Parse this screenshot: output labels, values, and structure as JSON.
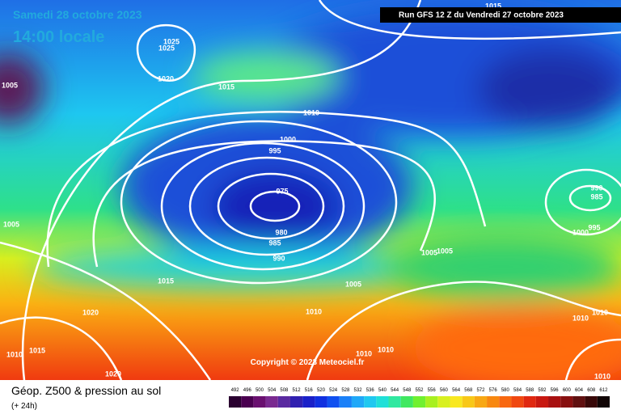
{
  "header": {
    "date": "Samedi 28 octobre 2023",
    "time": "14:00 locale",
    "run": "Run GFS 12 Z du Vendredi 27 octobre 2023"
  },
  "copyright": "Copyright © 2023 Meteociel.fr",
  "footer": {
    "title": "Géop. Z500 & pression au sol",
    "lead": "(+ 24h)"
  },
  "legend": {
    "ticks": [
      492,
      496,
      500,
      504,
      508,
      512,
      516,
      520,
      524,
      528,
      532,
      536,
      540,
      544,
      548,
      552,
      556,
      560,
      564,
      568,
      572,
      576,
      580,
      584,
      588,
      592,
      596,
      600,
      604,
      608,
      612
    ]
  },
  "isobar_labels": [
    1025,
    1025,
    1020,
    1015,
    1010,
    1005,
    1000,
    995,
    975,
    980,
    985,
    990,
    1015,
    1020,
    1005,
    1015,
    990,
    985,
    1000,
    995,
    1005,
    1005,
    1005,
    1010,
    1010,
    1010,
    1010,
    1010,
    1010,
    1010,
    1015,
    1020
  ]
}
